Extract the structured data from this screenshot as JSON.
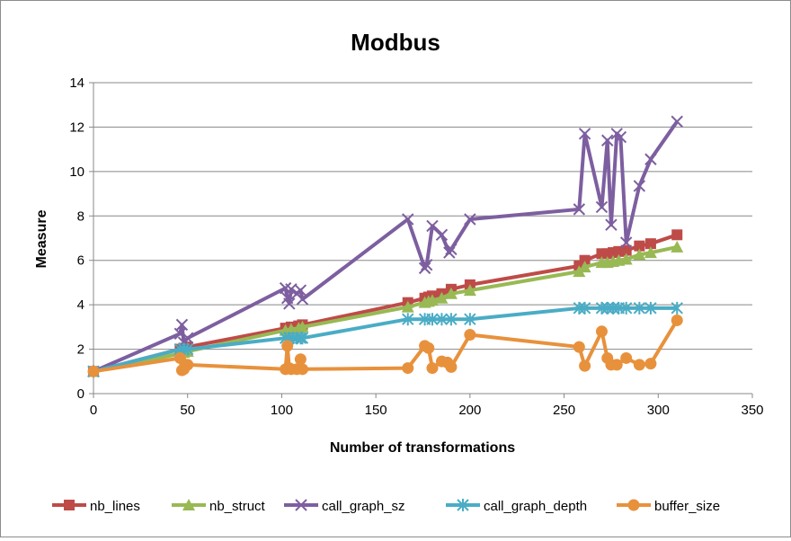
{
  "chart_data": {
    "type": "line",
    "title": "Modbus",
    "xlabel": "Number of transformations",
    "ylabel": "Measure",
    "xlim": [
      0,
      350
    ],
    "ylim": [
      0,
      14
    ],
    "xticks": [
      0,
      50,
      100,
      150,
      200,
      250,
      300,
      350
    ],
    "yticks": [
      0,
      2,
      4,
      6,
      8,
      10,
      12,
      14
    ],
    "grid": "horizontal",
    "legend": "bottom",
    "series": [
      {
        "name": "nb_lines",
        "color": "#be4b48",
        "marker": "square",
        "x": [
          0,
          46,
          48,
          50,
          102,
          105,
          109,
          111,
          167,
          176,
          178,
          180,
          185,
          190,
          200,
          258,
          261,
          270,
          273,
          276,
          279,
          283,
          290,
          296,
          310
        ],
        "y": [
          1,
          2.0,
          2.05,
          2.1,
          2.95,
          3.0,
          3.05,
          3.1,
          4.1,
          4.3,
          4.35,
          4.4,
          4.5,
          4.7,
          4.9,
          5.75,
          6.0,
          6.3,
          6.3,
          6.35,
          6.4,
          6.45,
          6.65,
          6.75,
          7.15
        ]
      },
      {
        "name": "nb_struct",
        "color": "#98b954",
        "marker": "triangle",
        "x": [
          0,
          46,
          48,
          50,
          102,
          105,
          109,
          111,
          167,
          176,
          178,
          180,
          185,
          190,
          200,
          258,
          261,
          270,
          273,
          276,
          279,
          283,
          290,
          296,
          310
        ],
        "y": [
          1,
          1.8,
          1.85,
          1.9,
          2.85,
          2.9,
          2.95,
          3.0,
          3.9,
          4.1,
          4.15,
          4.2,
          4.3,
          4.5,
          4.65,
          5.5,
          5.7,
          5.9,
          5.9,
          5.95,
          6.0,
          6.05,
          6.25,
          6.35,
          6.6
        ]
      },
      {
        "name": "call_graph_sz",
        "color": "#7d5fa0",
        "marker": "x",
        "x": [
          0,
          46,
          47,
          48,
          50,
          102,
          103,
          104,
          105,
          108,
          110,
          111,
          167,
          176,
          177,
          180,
          185,
          189,
          190,
          200,
          258,
          261,
          270,
          273,
          275,
          278,
          280,
          283,
          290,
          296,
          310
        ],
        "y": [
          1,
          2.7,
          3.1,
          2.3,
          2.5,
          4.75,
          4.3,
          4.05,
          4.7,
          4.5,
          4.65,
          4.25,
          7.85,
          5.65,
          5.8,
          7.55,
          7.15,
          6.35,
          6.5,
          7.85,
          8.3,
          11.7,
          8.4,
          11.4,
          7.6,
          11.7,
          11.55,
          6.8,
          9.35,
          10.55,
          12.25
        ]
      },
      {
        "name": "call_graph_depth",
        "color": "#4aacc5",
        "marker": "asterisk",
        "x": [
          0,
          46,
          48,
          50,
          102,
          104,
          106,
          108,
          110,
          111,
          167,
          176,
          180,
          185,
          190,
          200,
          258,
          261,
          270,
          273,
          276,
          279,
          283,
          290,
          296,
          310
        ],
        "y": [
          1,
          2.0,
          2.0,
          2.0,
          2.5,
          2.5,
          2.5,
          2.5,
          2.5,
          2.5,
          3.35,
          3.35,
          3.35,
          3.35,
          3.35,
          3.35,
          3.85,
          3.85,
          3.85,
          3.85,
          3.85,
          3.85,
          3.85,
          3.85,
          3.85,
          3.85
        ]
      },
      {
        "name": "buffer_size",
        "color": "#e8913c",
        "marker": "circle",
        "x": [
          0,
          46,
          47,
          48,
          50,
          102,
          103,
          104,
          105,
          108,
          110,
          111,
          167,
          176,
          178,
          180,
          185,
          188,
          190,
          200,
          258,
          261,
          270,
          273,
          275,
          278,
          283,
          290,
          296,
          310
        ],
        "y": [
          1,
          1.6,
          1.05,
          1.1,
          1.3,
          1.1,
          2.15,
          1.15,
          1.1,
          1.1,
          1.55,
          1.1,
          1.15,
          2.15,
          2.05,
          1.15,
          1.45,
          1.4,
          1.2,
          2.65,
          2.1,
          1.25,
          2.8,
          1.6,
          1.3,
          1.3,
          1.6,
          1.3,
          1.35,
          3.3
        ]
      }
    ]
  }
}
